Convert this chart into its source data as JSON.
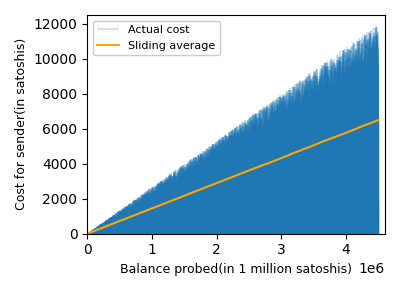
{
  "x_max": 4500000,
  "xlabel": "Balance probed(in 1 million satoshis)",
  "ylabel": "Cost for sender(in satoshis)",
  "legend_actual": "Actual cost",
  "legend_sliding": "Sliding average",
  "actual_color": "#1f77b4",
  "sliding_color": "orange",
  "actual_linewidth": 0.3,
  "sliding_linewidth": 1.5,
  "n_points": 15000,
  "seed": 42,
  "window": 800,
  "figsize": [
    4.0,
    2.91
  ],
  "dpi": 100,
  "xlim": [
    0,
    4600000
  ],
  "ylim": [
    0,
    12500
  ],
  "xticks": [
    0,
    1000000,
    2000000,
    3000000,
    4000000
  ],
  "yticks": [
    0,
    2000,
    4000,
    6000,
    8000,
    10000,
    12000
  ]
}
